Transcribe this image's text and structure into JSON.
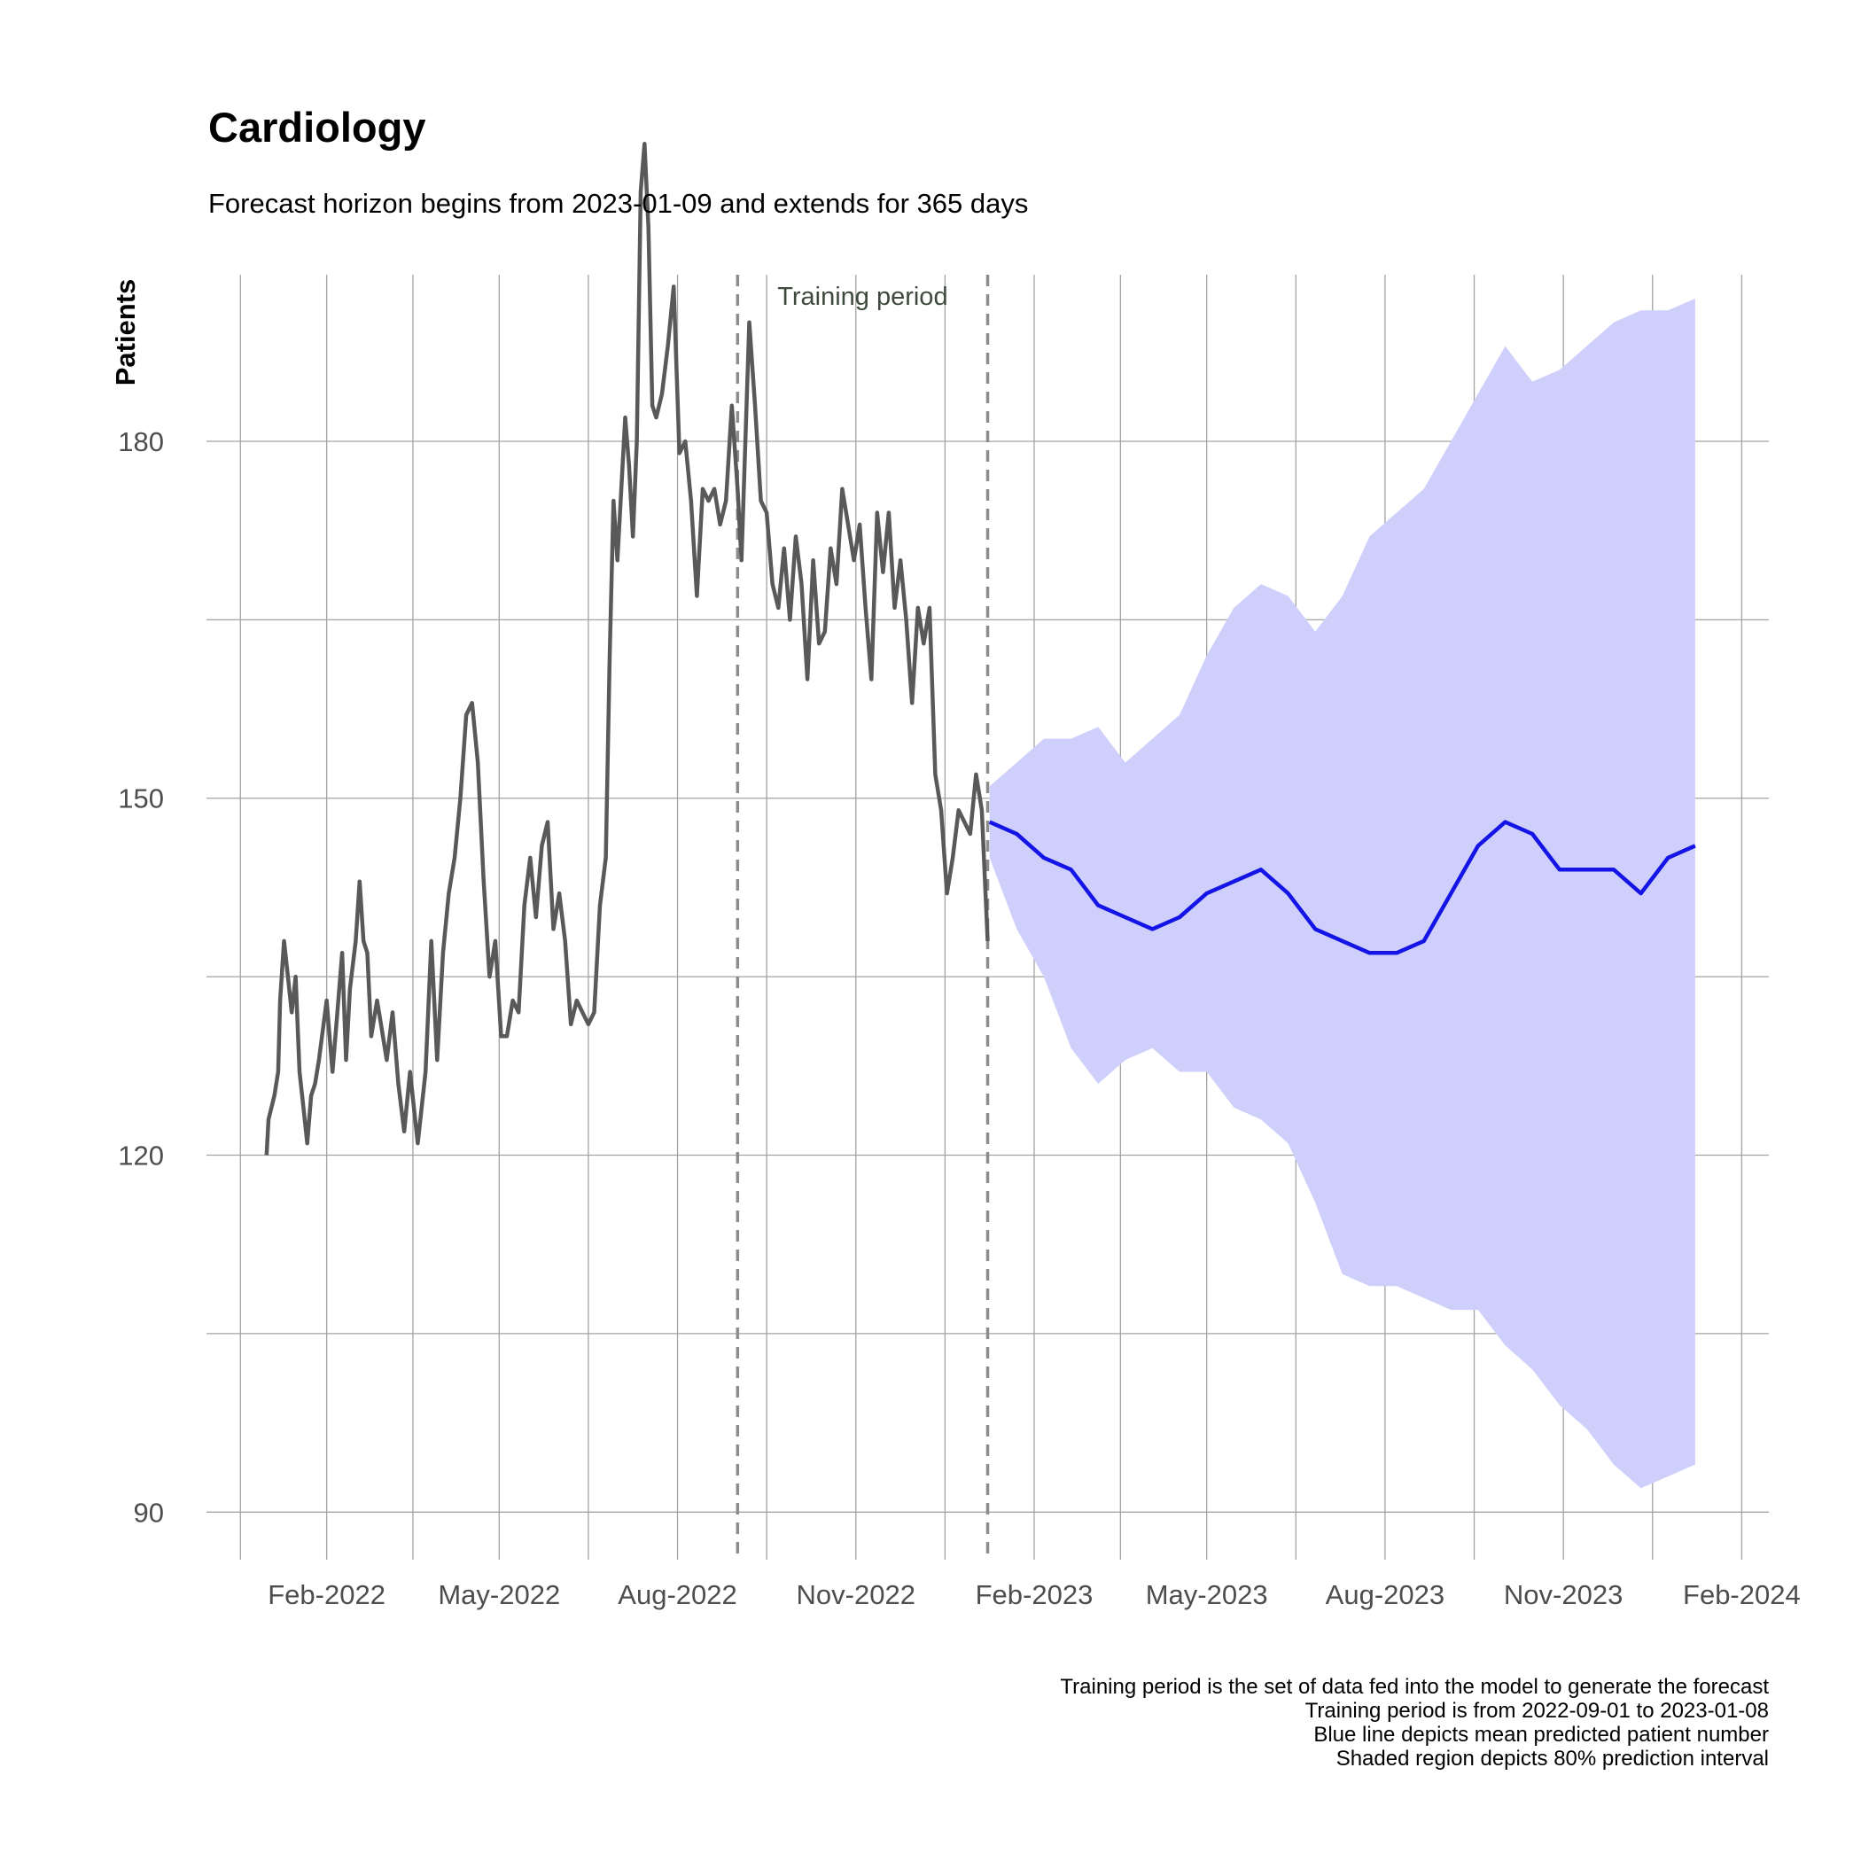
{
  "chart_data": {
    "type": "line",
    "title": "Cardiology",
    "subtitle": "Forecast horizon begins from 2023-01-09 and extends for 365 days",
    "xlabel": "",
    "ylabel": "Patients",
    "x_type": "date",
    "xlim": [
      "2021-12-01",
      "2024-02-15"
    ],
    "ylim": [
      86,
      194
    ],
    "x_tick_labels": [
      "Feb-2022",
      "May-2022",
      "Aug-2022",
      "Nov-2022",
      "Feb-2023",
      "May-2023",
      "Aug-2023",
      "Nov-2023",
      "Feb-2024"
    ],
    "x_ticks": [
      "2022-02-01",
      "2022-05-01",
      "2022-08-01",
      "2022-11-01",
      "2023-02-01",
      "2023-05-01",
      "2023-08-01",
      "2023-11-01",
      "2024-02-01"
    ],
    "y_ticks": [
      90,
      120,
      150,
      180
    ],
    "grid": true,
    "legend": "none",
    "colors": {
      "history": "#595959",
      "forecast": "#1414e6",
      "interval": "#cfcffc",
      "marker": "#8c8c8c"
    },
    "annotations": [
      {
        "text": "Training period",
        "x_start": "2022-09-01",
        "x_end": "2023-01-08"
      }
    ],
    "vlines": [
      "2022-09-01",
      "2023-01-08"
    ],
    "caption": [
      "Training period is the set of data fed into the model to generate the forecast",
      "Training period is from 2022-09-01 to 2023-01-08",
      "Blue line depicts mean predicted patient number",
      "Shaded region depicts 80% prediction interval"
    ],
    "series": [
      {
        "role": "observed",
        "x": [
          "2022-01-01",
          "2022-01-02",
          "2022-01-05",
          "2022-01-07",
          "2022-01-08",
          "2022-01-10",
          "2022-01-12",
          "2022-01-14",
          "2022-01-16",
          "2022-01-18",
          "2022-01-20",
          "2022-01-22",
          "2022-01-24",
          "2022-01-26",
          "2022-01-28",
          "2022-02-01",
          "2022-02-04",
          "2022-02-06",
          "2022-02-09",
          "2022-02-11",
          "2022-02-13",
          "2022-02-16",
          "2022-02-18",
          "2022-02-20",
          "2022-02-22",
          "2022-02-24",
          "2022-02-27",
          "2022-03-01",
          "2022-03-04",
          "2022-03-07",
          "2022-03-10",
          "2022-03-13",
          "2022-03-16",
          "2022-03-20",
          "2022-03-24",
          "2022-03-27",
          "2022-03-30",
          "2022-04-02",
          "2022-04-05",
          "2022-04-08",
          "2022-04-11",
          "2022-04-14",
          "2022-04-17",
          "2022-04-20",
          "2022-04-23",
          "2022-04-26",
          "2022-04-29",
          "2022-05-02",
          "2022-05-05",
          "2022-05-08",
          "2022-05-11",
          "2022-05-14",
          "2022-05-17",
          "2022-05-20",
          "2022-05-23",
          "2022-05-26",
          "2022-05-29",
          "2022-06-01",
          "2022-06-04",
          "2022-06-07",
          "2022-06-10",
          "2022-06-13",
          "2022-06-16",
          "2022-06-19",
          "2022-06-22",
          "2022-06-25",
          "2022-06-27",
          "2022-06-29",
          "2022-07-01",
          "2022-07-03",
          "2022-07-05",
          "2022-07-07",
          "2022-07-09",
          "2022-07-11",
          "2022-07-13",
          "2022-07-15",
          "2022-07-17",
          "2022-07-19",
          "2022-07-21",
          "2022-07-24",
          "2022-07-27",
          "2022-07-30",
          "2022-08-02",
          "2022-08-05",
          "2022-08-08",
          "2022-08-11",
          "2022-08-14",
          "2022-08-17",
          "2022-08-20",
          "2022-08-23",
          "2022-08-26",
          "2022-08-29",
          "2022-09-01",
          "2022-09-03",
          "2022-09-05",
          "2022-09-07",
          "2022-09-10",
          "2022-09-13",
          "2022-09-16",
          "2022-09-19",
          "2022-09-22",
          "2022-09-25",
          "2022-09-28",
          "2022-10-01",
          "2022-10-04",
          "2022-10-07",
          "2022-10-10",
          "2022-10-13",
          "2022-10-16",
          "2022-10-19",
          "2022-10-22",
          "2022-10-25",
          "2022-10-28",
          "2022-10-31",
          "2022-11-03",
          "2022-11-06",
          "2022-11-09",
          "2022-11-12",
          "2022-11-15",
          "2022-11-18",
          "2022-11-21",
          "2022-11-24",
          "2022-11-27",
          "2022-11-30",
          "2022-12-03",
          "2022-12-06",
          "2022-12-09",
          "2022-12-12",
          "2022-12-15",
          "2022-12-18",
          "2022-12-21",
          "2022-12-24",
          "2022-12-27",
          "2022-12-30",
          "2023-01-02",
          "2023-01-05",
          "2023-01-08"
        ],
        "y": [
          120,
          123,
          125,
          127,
          133,
          138,
          135,
          132,
          135,
          127,
          124,
          121,
          125,
          126,
          128,
          133,
          127,
          131,
          137,
          128,
          134,
          138,
          143,
          138,
          137,
          130,
          133,
          131,
          128,
          132,
          126,
          122,
          127,
          121,
          127,
          138,
          128,
          137,
          142,
          145,
          150,
          157,
          158,
          153,
          143,
          135,
          138,
          130,
          130,
          133,
          132,
          141,
          145,
          140,
          146,
          148,
          139,
          142,
          138,
          131,
          133,
          132,
          131,
          132,
          141,
          145,
          162,
          175,
          170,
          176,
          182,
          178,
          172,
          180,
          201,
          205,
          198,
          183,
          182,
          184,
          188,
          193,
          179,
          180,
          175,
          167,
          176,
          175,
          176,
          173,
          175,
          183,
          176,
          170,
          180,
          190,
          183,
          175,
          174,
          168,
          166,
          171,
          165,
          172,
          168,
          160,
          170,
          163,
          164,
          171,
          168,
          176,
          173,
          170,
          173,
          166,
          160,
          174,
          169,
          174,
          166,
          170,
          165,
          158,
          166,
          163,
          166,
          152,
          149,
          142,
          145,
          149,
          148,
          147,
          152,
          149,
          138
        ]
      },
      {
        "role": "forecast_mean",
        "x": [
          "2023-01-09",
          "2023-01-23",
          "2023-02-06",
          "2023-02-20",
          "2023-03-06",
          "2023-03-20",
          "2023-04-03",
          "2023-04-17",
          "2023-05-01",
          "2023-05-15",
          "2023-05-29",
          "2023-06-12",
          "2023-06-26",
          "2023-07-10",
          "2023-07-24",
          "2023-08-07",
          "2023-08-21",
          "2023-09-04",
          "2023-09-18",
          "2023-10-02",
          "2023-10-16",
          "2023-10-30",
          "2023-11-13",
          "2023-11-27",
          "2023-12-11",
          "2023-12-25",
          "2024-01-08"
        ],
        "y": [
          148,
          147,
          145,
          144,
          141,
          140,
          139,
          140,
          142,
          143,
          144,
          142,
          139,
          138,
          137,
          137,
          138,
          142,
          146,
          148,
          147,
          144,
          144,
          144,
          142,
          145,
          146
        ]
      },
      {
        "role": "interval_upper",
        "x": [
          "2023-01-09",
          "2023-01-23",
          "2023-02-06",
          "2023-02-20",
          "2023-03-06",
          "2023-03-20",
          "2023-04-03",
          "2023-04-17",
          "2023-05-01",
          "2023-05-15",
          "2023-05-29",
          "2023-06-12",
          "2023-06-26",
          "2023-07-10",
          "2023-07-24",
          "2023-08-07",
          "2023-08-21",
          "2023-09-04",
          "2023-09-18",
          "2023-10-02",
          "2023-10-16",
          "2023-10-30",
          "2023-11-13",
          "2023-11-27",
          "2023-12-11",
          "2023-12-25",
          "2024-01-08"
        ],
        "y": [
          151,
          153,
          155,
          155,
          156,
          153,
          155,
          157,
          162,
          166,
          168,
          167,
          164,
          167,
          172,
          174,
          176,
          180,
          184,
          188,
          185,
          186,
          188,
          190,
          191,
          191,
          192
        ]
      },
      {
        "role": "interval_lower",
        "x": [
          "2023-01-09",
          "2023-01-23",
          "2023-02-06",
          "2023-02-20",
          "2023-03-06",
          "2023-03-20",
          "2023-04-03",
          "2023-04-17",
          "2023-05-01",
          "2023-05-15",
          "2023-05-29",
          "2023-06-12",
          "2023-06-26",
          "2023-07-10",
          "2023-07-24",
          "2023-08-07",
          "2023-08-21",
          "2023-09-04",
          "2023-09-18",
          "2023-10-02",
          "2023-10-16",
          "2023-10-30",
          "2023-11-13",
          "2023-11-27",
          "2023-12-11",
          "2023-12-25",
          "2024-01-08"
        ],
        "y": [
          145,
          139,
          135,
          129,
          126,
          128,
          129,
          127,
          127,
          124,
          123,
          121,
          116,
          110,
          109,
          109,
          108,
          107,
          107,
          104,
          102,
          99,
          97,
          94,
          92,
          93,
          94
        ]
      }
    ]
  }
}
